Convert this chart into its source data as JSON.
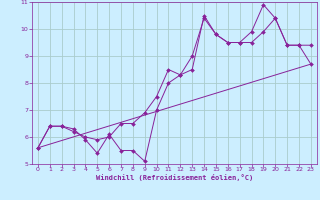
{
  "xlabel": "Windchill (Refroidissement éolien,°C)",
  "background_color": "#cceeff",
  "grid_color": "#aacccc",
  "line_color": "#882299",
  "xlim": [
    -0.5,
    23.5
  ],
  "ylim": [
    5,
    11
  ],
  "xticks": [
    0,
    1,
    2,
    3,
    4,
    5,
    6,
    7,
    8,
    9,
    10,
    11,
    12,
    13,
    14,
    15,
    16,
    17,
    18,
    19,
    20,
    21,
    22,
    23
  ],
  "yticks": [
    5,
    6,
    7,
    8,
    9,
    10,
    11
  ],
  "line1_x": [
    0,
    1,
    2,
    3,
    4,
    5,
    6,
    7,
    8,
    9,
    10,
    11,
    12,
    13,
    14,
    15,
    16,
    17,
    18,
    19,
    20,
    21,
    22,
    23
  ],
  "line1_y": [
    5.6,
    6.4,
    6.4,
    6.3,
    5.9,
    5.4,
    6.1,
    5.5,
    5.5,
    5.1,
    7.0,
    8.0,
    8.3,
    8.5,
    10.5,
    9.8,
    9.5,
    9.5,
    9.5,
    9.9,
    10.4,
    9.4,
    9.4,
    9.4
  ],
  "line2_x": [
    0,
    1,
    2,
    3,
    4,
    5,
    6,
    7,
    8,
    9,
    10,
    11,
    12,
    13,
    14,
    15,
    16,
    17,
    18,
    19,
    20,
    21,
    22,
    23
  ],
  "line2_y": [
    5.6,
    6.4,
    6.4,
    6.2,
    6.0,
    5.9,
    6.0,
    6.5,
    6.5,
    6.9,
    7.5,
    8.5,
    8.3,
    9.0,
    10.4,
    9.8,
    9.5,
    9.5,
    9.9,
    10.9,
    10.4,
    9.4,
    9.4,
    8.7
  ],
  "line3_x": [
    0,
    23
  ],
  "line3_y": [
    5.6,
    8.7
  ]
}
